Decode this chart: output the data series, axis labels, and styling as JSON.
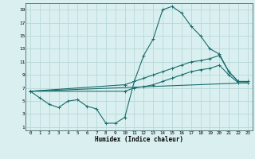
{
  "background_color": "#daf0f0",
  "grid_color": "#b8d8d8",
  "line_color": "#1a6b6b",
  "xlabel": "Humidex (Indice chaleur)",
  "xlim": [
    -0.5,
    23.5
  ],
  "ylim": [
    0.5,
    20
  ],
  "xticks": [
    0,
    1,
    2,
    3,
    4,
    5,
    6,
    7,
    8,
    9,
    10,
    11,
    12,
    13,
    14,
    15,
    16,
    17,
    18,
    19,
    20,
    21,
    22,
    23
  ],
  "yticks": [
    1,
    3,
    5,
    7,
    9,
    11,
    13,
    15,
    17,
    19
  ],
  "line1_x": [
    0,
    1,
    2,
    3,
    4,
    5,
    6,
    7,
    8,
    9,
    10,
    11,
    12,
    13,
    14,
    15,
    16,
    17,
    18,
    19,
    20,
    21,
    22,
    23
  ],
  "line1_y": [
    6.5,
    5.5,
    4.5,
    4.0,
    5.0,
    5.2,
    4.2,
    3.8,
    1.6,
    1.6,
    2.5,
    8.0,
    12.0,
    14.5,
    19.0,
    19.5,
    18.5,
    16.5,
    15.0,
    13.0,
    12.2,
    9.5,
    8.0,
    8.0
  ],
  "line2_x": [
    0,
    10,
    11,
    12,
    13,
    14,
    15,
    16,
    17,
    18,
    19,
    20,
    21,
    22,
    23
  ],
  "line2_y": [
    6.5,
    7.5,
    8.0,
    8.5,
    9.0,
    9.5,
    10.0,
    10.5,
    11.0,
    11.2,
    11.5,
    12.0,
    9.5,
    8.0,
    8.0
  ],
  "line3_x": [
    0,
    10,
    11,
    12,
    13,
    14,
    15,
    16,
    17,
    18,
    19,
    20,
    21,
    22,
    23
  ],
  "line3_y": [
    6.5,
    6.5,
    7.0,
    7.2,
    7.5,
    8.0,
    8.5,
    9.0,
    9.5,
    9.8,
    10.0,
    10.5,
    9.0,
    7.8,
    7.8
  ],
  "line4_x": [
    0,
    23
  ],
  "line4_y": [
    6.5,
    7.8
  ]
}
